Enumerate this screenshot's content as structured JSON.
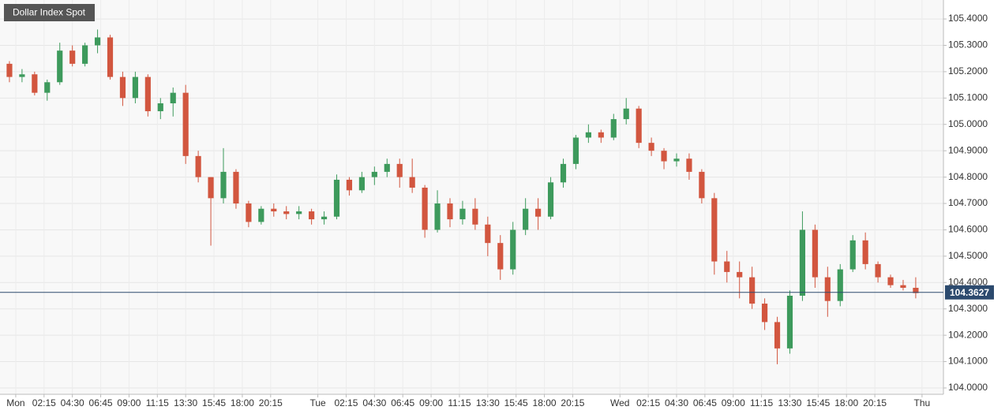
{
  "chart_data": {
    "type": "candlestick",
    "title": "Dollar Index Spot",
    "up_color": "#3d9a5c",
    "down_color": "#d2563f",
    "last_price": 104.3627,
    "last_price_color": "#2c4a6e",
    "xlim": [
      -1.25,
      73.7
    ],
    "xticks": [
      {
        "value": 0,
        "label": "Mon"
      },
      {
        "value": 2.25,
        "label": "02:15"
      },
      {
        "value": 4.5,
        "label": "04:30"
      },
      {
        "value": 6.75,
        "label": "06:45"
      },
      {
        "value": 9,
        "label": "09:00"
      },
      {
        "value": 11.25,
        "label": "11:15"
      },
      {
        "value": 13.5,
        "label": "13:30"
      },
      {
        "value": 15.75,
        "label": "15:45"
      },
      {
        "value": 18,
        "label": "18:00"
      },
      {
        "value": 20.25,
        "label": "20:15"
      },
      {
        "value": 24,
        "label": "Tue"
      },
      {
        "value": 26.25,
        "label": "02:15"
      },
      {
        "value": 28.5,
        "label": "04:30"
      },
      {
        "value": 30.75,
        "label": "06:45"
      },
      {
        "value": 33,
        "label": "09:00"
      },
      {
        "value": 35.25,
        "label": "11:15"
      },
      {
        "value": 37.5,
        "label": "13:30"
      },
      {
        "value": 39.75,
        "label": "15:45"
      },
      {
        "value": 42,
        "label": "18:00"
      },
      {
        "value": 44.25,
        "label": "20:15"
      },
      {
        "value": 48,
        "label": "Wed"
      },
      {
        "value": 50.25,
        "label": "02:15"
      },
      {
        "value": 52.5,
        "label": "04:30"
      },
      {
        "value": 54.75,
        "label": "06:45"
      },
      {
        "value": 57,
        "label": "09:00"
      },
      {
        "value": 59.25,
        "label": "11:15"
      },
      {
        "value": 61.5,
        "label": "13:30"
      },
      {
        "value": 63.75,
        "label": "15:45"
      },
      {
        "value": 66,
        "label": "18:00"
      },
      {
        "value": 68.25,
        "label": "20:15"
      },
      {
        "value": 72,
        "label": "Thu"
      }
    ],
    "ylim": [
      103.976,
      105.472
    ],
    "yticks": [
      {
        "value": 104.0,
        "label": "104.0000"
      },
      {
        "value": 104.1,
        "label": "104.1000"
      },
      {
        "value": 104.2,
        "label": "104.2000"
      },
      {
        "value": 104.3,
        "label": "104.3000"
      },
      {
        "value": 104.4,
        "label": "104.4000"
      },
      {
        "value": 104.5,
        "label": "104.5000"
      },
      {
        "value": 104.6,
        "label": "104.6000"
      },
      {
        "value": 104.7,
        "label": "104.7000"
      },
      {
        "value": 104.8,
        "label": "104.8000"
      },
      {
        "value": 104.9,
        "label": "104.9000"
      },
      {
        "value": 105.0,
        "label": "105.0000"
      },
      {
        "value": 105.1,
        "label": "105.1000"
      },
      {
        "value": 105.2,
        "label": "105.2000"
      },
      {
        "value": 105.3,
        "label": "105.3000"
      },
      {
        "value": 105.4,
        "label": "105.4000"
      }
    ],
    "grid": true,
    "x": [
      -0.5,
      0.5,
      1.5,
      2.5,
      3.5,
      4.5,
      5.5,
      6.5,
      7.5,
      8.5,
      9.5,
      10.5,
      11.5,
      12.5,
      13.5,
      14.5,
      15.5,
      16.5,
      17.5,
      18.5,
      19.5,
      20.5,
      21.5,
      22.5,
      23.5,
      24.5,
      25.5,
      26.5,
      27.5,
      28.5,
      29.5,
      30.5,
      31.5,
      32.5,
      33.5,
      34.5,
      35.5,
      36.5,
      37.5,
      38.5,
      39.5,
      40.5,
      41.5,
      42.5,
      43.5,
      44.5,
      45.5,
      46.5,
      47.5,
      48.5,
      49.5,
      50.5,
      51.5,
      52.5,
      53.5,
      54.5,
      55.5,
      56.5,
      57.5,
      58.5,
      59.5,
      60.5,
      61.5,
      62.5,
      63.5,
      64.5,
      65.5,
      66.5,
      67.5,
      68.5,
      69.5,
      70.5,
      71.5
    ],
    "open": [
      105.23,
      105.18,
      105.19,
      105.12,
      105.16,
      105.28,
      105.23,
      105.3,
      105.33,
      105.18,
      105.1,
      105.18,
      105.05,
      105.08,
      105.12,
      104.88,
      104.8,
      104.72,
      104.82,
      104.7,
      104.63,
      104.68,
      104.67,
      104.66,
      104.67,
      104.64,
      104.65,
      104.79,
      104.75,
      104.8,
      104.82,
      104.85,
      104.8,
      104.76,
      104.6,
      104.7,
      104.64,
      104.68,
      104.62,
      104.55,
      104.45,
      104.6,
      104.68,
      104.65,
      104.78,
      104.85,
      104.95,
      104.97,
      104.95,
      105.02,
      105.06,
      104.93,
      104.9,
      104.86,
      104.87,
      104.82,
      104.72,
      104.48,
      104.44,
      104.42,
      104.32,
      104.25,
      104.15,
      104.35,
      104.6,
      104.42,
      104.33,
      104.45,
      104.56,
      104.47,
      104.42,
      104.39,
      104.38
    ],
    "high": [
      105.24,
      105.21,
      105.2,
      105.17,
      105.31,
      105.3,
      105.31,
      105.36,
      105.34,
      105.2,
      105.2,
      105.19,
      105.1,
      105.14,
      105.15,
      104.9,
      104.8,
      104.91,
      104.83,
      104.71,
      104.69,
      104.7,
      104.69,
      104.69,
      104.68,
      104.67,
      104.81,
      104.8,
      104.82,
      104.84,
      104.87,
      104.87,
      104.87,
      104.77,
      104.75,
      104.72,
      104.71,
      104.72,
      104.65,
      104.58,
      104.63,
      104.72,
      104.72,
      104.8,
      104.87,
      104.96,
      105.0,
      104.98,
      105.04,
      105.1,
      105.07,
      104.95,
      104.91,
      104.89,
      104.89,
      104.83,
      104.74,
      104.52,
      104.48,
      104.46,
      104.34,
      104.27,
      104.37,
      104.67,
      104.62,
      104.46,
      104.47,
      104.58,
      104.59,
      104.48,
      104.43,
      104.41,
      104.42
    ],
    "low": [
      105.16,
      105.16,
      105.11,
      105.09,
      105.15,
      105.22,
      105.22,
      105.27,
      105.17,
      105.07,
      105.08,
      105.03,
      105.02,
      105.03,
      104.85,
      104.78,
      104.54,
      104.7,
      104.68,
      104.61,
      104.62,
      104.65,
      104.64,
      104.64,
      104.62,
      104.62,
      104.64,
      104.73,
      104.74,
      104.77,
      104.8,
      104.76,
      104.74,
      104.57,
      104.59,
      104.61,
      104.62,
      104.6,
      104.5,
      104.41,
      104.43,
      104.58,
      104.6,
      104.64,
      104.76,
      104.83,
      104.93,
      104.93,
      104.94,
      105.0,
      104.91,
      104.88,
      104.83,
      104.84,
      104.79,
      104.7,
      104.43,
      104.4,
      104.34,
      104.3,
      104.22,
      104.09,
      104.13,
      104.33,
      104.38,
      104.27,
      104.31,
      104.44,
      104.45,
      104.4,
      104.38,
      104.37,
      104.34
    ],
    "close": [
      105.18,
      105.19,
      105.12,
      105.16,
      105.28,
      105.23,
      105.3,
      105.33,
      105.18,
      105.1,
      105.18,
      105.05,
      105.08,
      105.12,
      104.88,
      104.8,
      104.72,
      104.82,
      104.7,
      104.63,
      104.68,
      104.67,
      104.66,
      104.67,
      104.64,
      104.65,
      104.79,
      104.75,
      104.8,
      104.82,
      104.85,
      104.8,
      104.76,
      104.6,
      104.7,
      104.64,
      104.68,
      104.62,
      104.55,
      104.45,
      104.6,
      104.68,
      104.65,
      104.78,
      104.85,
      104.95,
      104.97,
      104.95,
      105.02,
      105.06,
      104.93,
      104.9,
      104.86,
      104.87,
      104.82,
      104.72,
      104.48,
      104.44,
      104.42,
      104.32,
      104.25,
      104.15,
      104.35,
      104.6,
      104.42,
      104.33,
      104.45,
      104.56,
      104.47,
      104.42,
      104.39,
      104.38,
      104.36
    ]
  }
}
